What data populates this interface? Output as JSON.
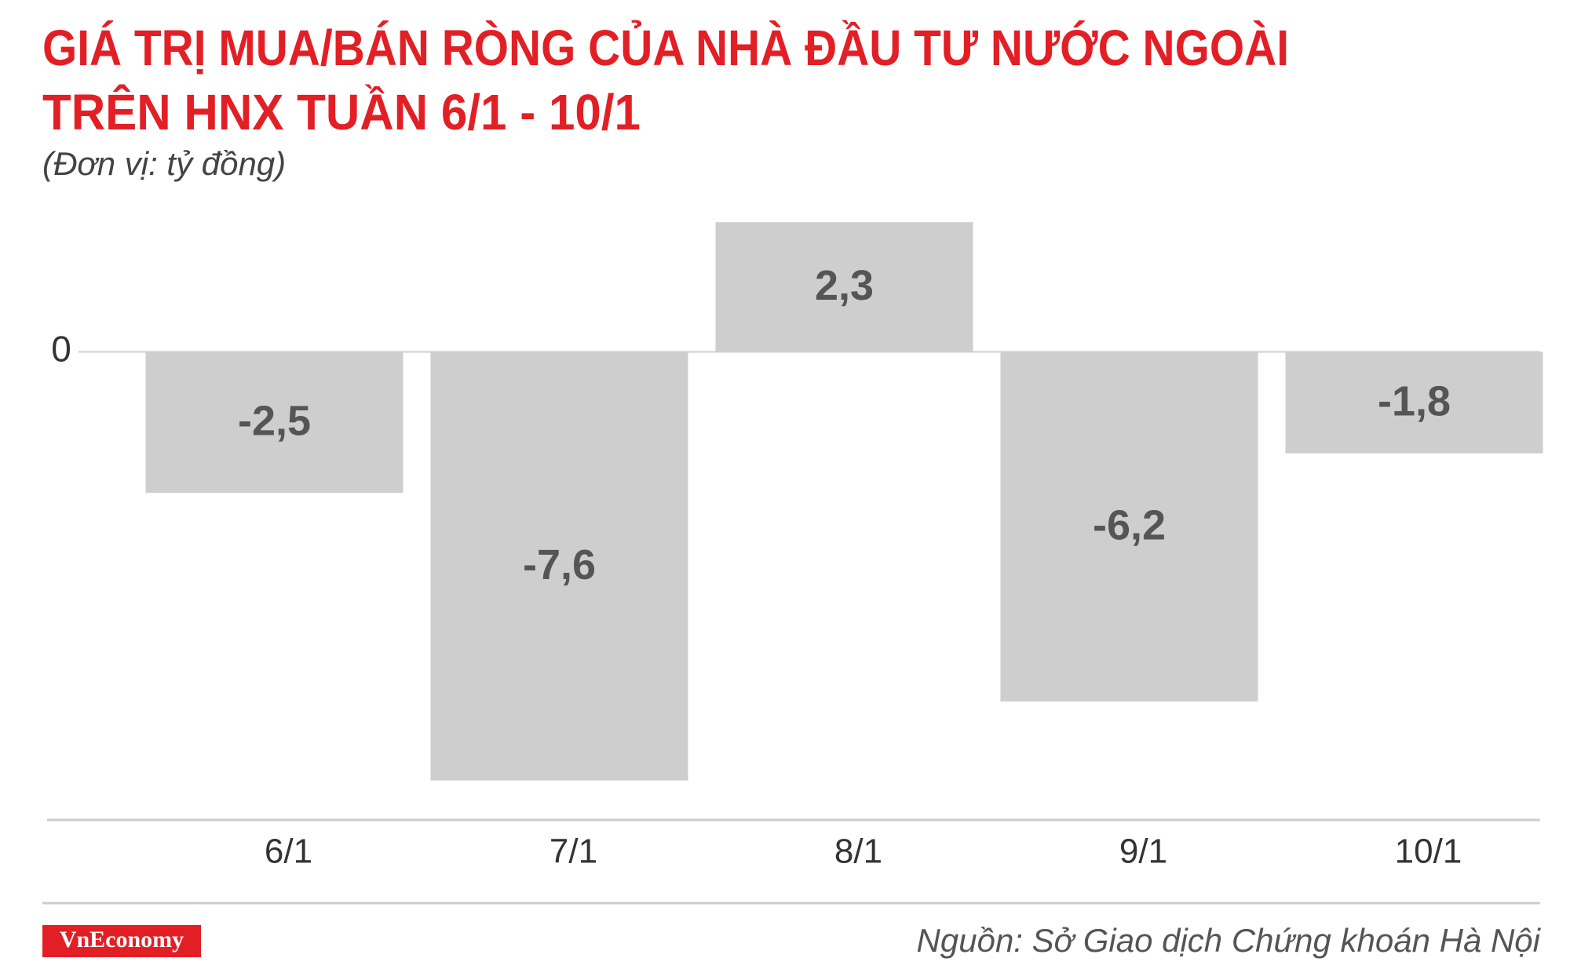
{
  "chart_data": {
    "type": "bar",
    "title": [
      "GIÁ TRỊ MUA/BÁN RÒNG CỦA NHÀ ĐẦU TƯ NƯỚC NGOÀI",
      "TRÊN HNX TUẦN 6/1 - 10/1"
    ],
    "subtitle": "(Đơn vị: tỷ đồng)",
    "categories": [
      "6/1",
      "7/1",
      "8/1",
      "9/1",
      "10/1"
    ],
    "values": [
      -2.5,
      -7.6,
      2.3,
      -6.2,
      -1.8
    ],
    "value_labels": [
      "-2,5",
      "-7,6",
      "2,3",
      "-6,2",
      "-1,8"
    ],
    "color": "#cfcecf",
    "ylim": [
      -8.3,
      2.4
    ],
    "yticks": [
      0
    ],
    "grid": true,
    "source": "Nguồn: Sở Giao dịch Chứng khoán Hà Nội",
    "logo": "VnEconomy"
  }
}
